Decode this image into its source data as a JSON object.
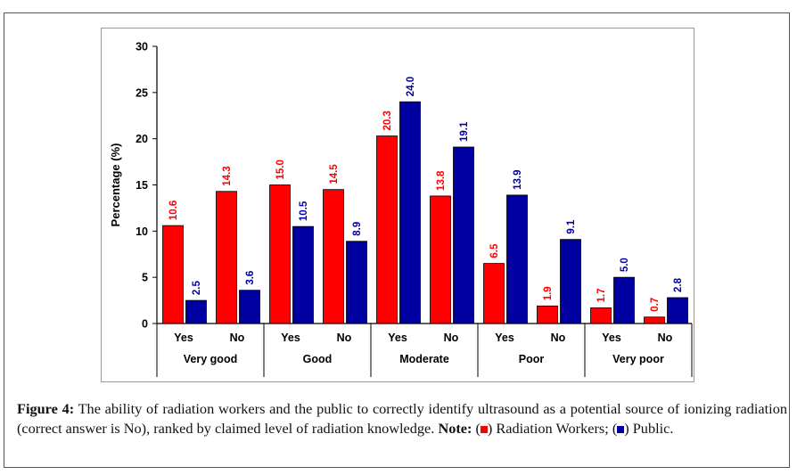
{
  "chart_data": {
    "type": "bar",
    "ylabel": "Percentage (%)",
    "ylim": [
      0,
      30
    ],
    "yticks": [
      "0",
      "5",
      "10",
      "15",
      "20",
      "25",
      "30"
    ],
    "grid": false,
    "groups": [
      "Very good",
      "Good",
      "Moderate",
      "Poor",
      "Very poor"
    ],
    "subcategories": [
      "Yes",
      "No"
    ],
    "series": [
      {
        "color": "#ff0000",
        "values": [
          10.6,
          14.3,
          15.0,
          14.5,
          20.3,
          13.8,
          6.5,
          1.9,
          1.7,
          0.7
        ]
      },
      {
        "color": "#0000a0",
        "values": [
          2.5,
          3.6,
          10.5,
          8.9,
          24.0,
          19.1,
          13.9,
          9.1,
          5.0,
          2.8
        ]
      }
    ],
    "value_labels": [
      [
        "10.6",
        "14.3",
        "15.0",
        "14.5",
        "20.3",
        "13.8",
        "6.5",
        "1.9",
        "1.7",
        "0.7"
      ],
      [
        "2.5",
        "3.6",
        "10.5",
        "8.9",
        "24.0",
        "19.1",
        "13.9",
        "9.1",
        "5.0",
        "2.8"
      ]
    ]
  },
  "caption": {
    "label": "Figure 4:",
    "text": "The ability of radiation workers and the public to correctly identify ultrasound as a potential source of ionizing radiation (correct answer is No), ranked by claimed level of radiation knowledge.",
    "note_label": "Note:",
    "open1": "(",
    "close1": ") Radiation Workers; (",
    "close2": ") Public.",
    "red_color": "#ff0000",
    "blue_color": "#0000a0"
  }
}
